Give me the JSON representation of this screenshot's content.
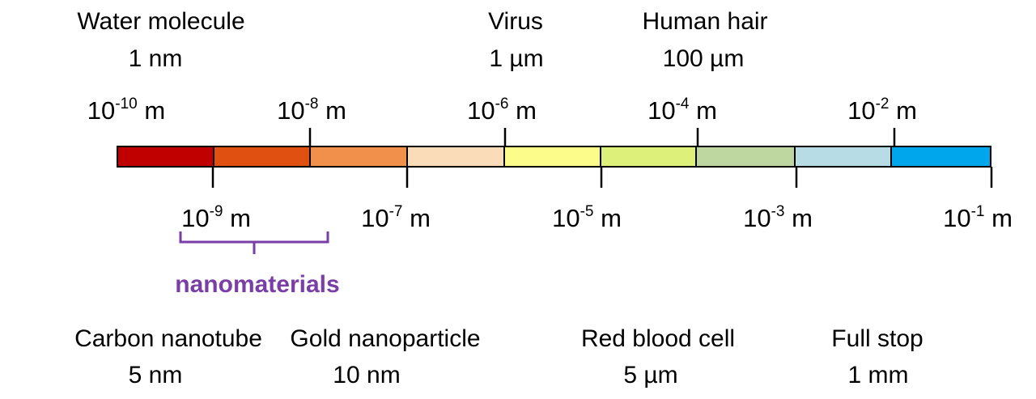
{
  "objects_top": [
    {
      "name": "Water molecule",
      "size": "1 nm"
    },
    {
      "name": "Virus",
      "size": "1 µm"
    },
    {
      "name": "Human hair",
      "size": "100 µm"
    }
  ],
  "objects_bottom": [
    {
      "name": "Carbon nanotube",
      "size": "5 nm"
    },
    {
      "name": "Gold nanoparticle",
      "size": "10 nm"
    },
    {
      "name": "Red blood cell",
      "size": "5 µm"
    },
    {
      "name": "Full stop",
      "size": "1 mm"
    }
  ],
  "scale": {
    "ticks_top": [
      {
        "base": "10",
        "exp": "-10",
        "unit": "m"
      },
      {
        "base": "10",
        "exp": "-8",
        "unit": "m"
      },
      {
        "base": "10",
        "exp": "-6",
        "unit": "m"
      },
      {
        "base": "10",
        "exp": "-4",
        "unit": "m"
      },
      {
        "base": "10",
        "exp": "-2",
        "unit": "m"
      }
    ],
    "ticks_bottom": [
      {
        "base": "10",
        "exp": "-9",
        "unit": "m"
      },
      {
        "base": "10",
        "exp": "-7",
        "unit": "m"
      },
      {
        "base": "10",
        "exp": "-5",
        "unit": "m"
      },
      {
        "base": "10",
        "exp": "-3",
        "unit": "m"
      },
      {
        "base": "10",
        "exp": "-1",
        "unit": "m"
      }
    ],
    "segment_colors": [
      "#c00000",
      "#e05010",
      "#f0904a",
      "#fbdcb8",
      "#fbfc8a",
      "#dcf07a",
      "#bed6a0",
      "#b8dce6",
      "#00a6ec"
    ]
  },
  "nanomaterials": {
    "label": "nanomaterials",
    "color": "#7a3fa6"
  }
}
